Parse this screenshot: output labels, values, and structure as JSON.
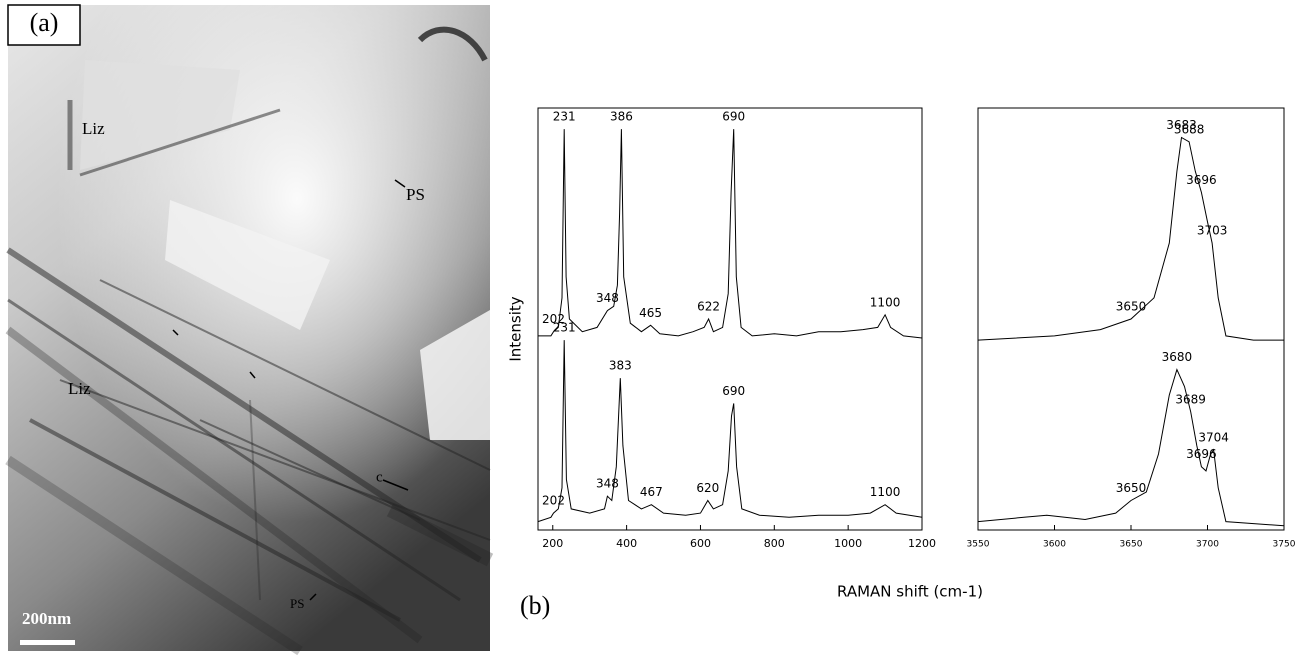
{
  "panel_a": {
    "label": "(a)",
    "annotations": [
      "Liz",
      "PS",
      "Liz",
      "c",
      "PS"
    ],
    "scale_bar": "200nm"
  },
  "panel_b": {
    "label": "(b)",
    "xlabel": "RAMAN shift (cm-1)"
  },
  "chart_data": [
    {
      "type": "line",
      "ylabel": "Intensity",
      "xlim": [
        160,
        1200
      ],
      "xticks": [
        200,
        400,
        600,
        800,
        1000,
        1200
      ],
      "ylim": [
        0,
        100
      ],
      "series": [
        {
          "color": "#000000",
          "x": [
            160,
            195,
            202,
            215,
            225,
            231,
            236,
            245,
            280,
            320,
            348,
            365,
            375,
            381,
            386,
            392,
            410,
            440,
            465,
            490,
            540,
            580,
            610,
            622,
            635,
            660,
            675,
            683,
            690,
            697,
            710,
            740,
            800,
            860,
            920,
            980,
            1040,
            1080,
            1100,
            1115,
            1150,
            1200
          ],
          "values": [
            46,
            46,
            47,
            48,
            55,
            95,
            60,
            50,
            47,
            48,
            52,
            53,
            58,
            75,
            95,
            60,
            49,
            47,
            48.5,
            46.5,
            46,
            47,
            48,
            50,
            47,
            48,
            56,
            80,
            95,
            60,
            48,
            46,
            46.5,
            46,
            47,
            47,
            47.5,
            48,
            51,
            48,
            46,
            45.5
          ],
          "peaks": [
            202,
            231,
            348,
            386,
            465,
            622,
            690,
            1100
          ]
        },
        {
          "color": "#000000",
          "x": [
            160,
            195,
            202,
            215,
            225,
            231,
            237,
            250,
            300,
            340,
            348,
            360,
            372,
            383,
            390,
            405,
            440,
            467,
            500,
            560,
            600,
            620,
            635,
            660,
            675,
            684,
            690,
            698,
            712,
            760,
            840,
            920,
            1000,
            1060,
            1100,
            1130,
            1200
          ],
          "values": [
            2,
            3,
            4,
            5,
            10,
            45,
            12,
            5,
            4,
            5,
            8,
            7,
            15,
            36,
            20,
            7,
            5,
            6,
            4,
            3.5,
            4,
            7,
            5,
            6,
            14,
            27,
            30,
            15,
            5,
            3.5,
            3,
            3.5,
            3.5,
            4,
            6,
            4,
            3
          ],
          "peaks": [
            202,
            231,
            348,
            383,
            467,
            620,
            690,
            1100
          ]
        }
      ]
    },
    {
      "type": "line",
      "xlim": [
        3550,
        3750
      ],
      "xticks": [
        3550,
        3600,
        3650,
        3700,
        3750
      ],
      "ylim": [
        0,
        100
      ],
      "series": [
        {
          "color": "#000000",
          "x": [
            3550,
            3600,
            3630,
            3650,
            3665,
            3675,
            3680,
            3683,
            3688,
            3692,
            3696,
            3700,
            3703,
            3707,
            3712,
            3730,
            3750
          ],
          "values": [
            45,
            46,
            47.5,
            50,
            55,
            68,
            85,
            93,
            92,
            85,
            80,
            73,
            68,
            55,
            46,
            45,
            45
          ],
          "peaks": [
            3650,
            3683,
            3688,
            3696,
            3703
          ]
        },
        {
          "color": "#000000",
          "x": [
            3550,
            3580,
            3595,
            3620,
            3640,
            3650,
            3660,
            3668,
            3675,
            3680,
            3685,
            3689,
            3693,
            3696,
            3699,
            3702,
            3704,
            3707,
            3712,
            3750
          ],
          "values": [
            2,
            3,
            3.5,
            2.5,
            4,
            7,
            9,
            18,
            32,
            38,
            34,
            28,
            20,
            15,
            14,
            18,
            19,
            10,
            2,
            1
          ],
          "peaks": [
            3650,
            3680,
            3689,
            3696,
            3704
          ]
        }
      ]
    }
  ]
}
